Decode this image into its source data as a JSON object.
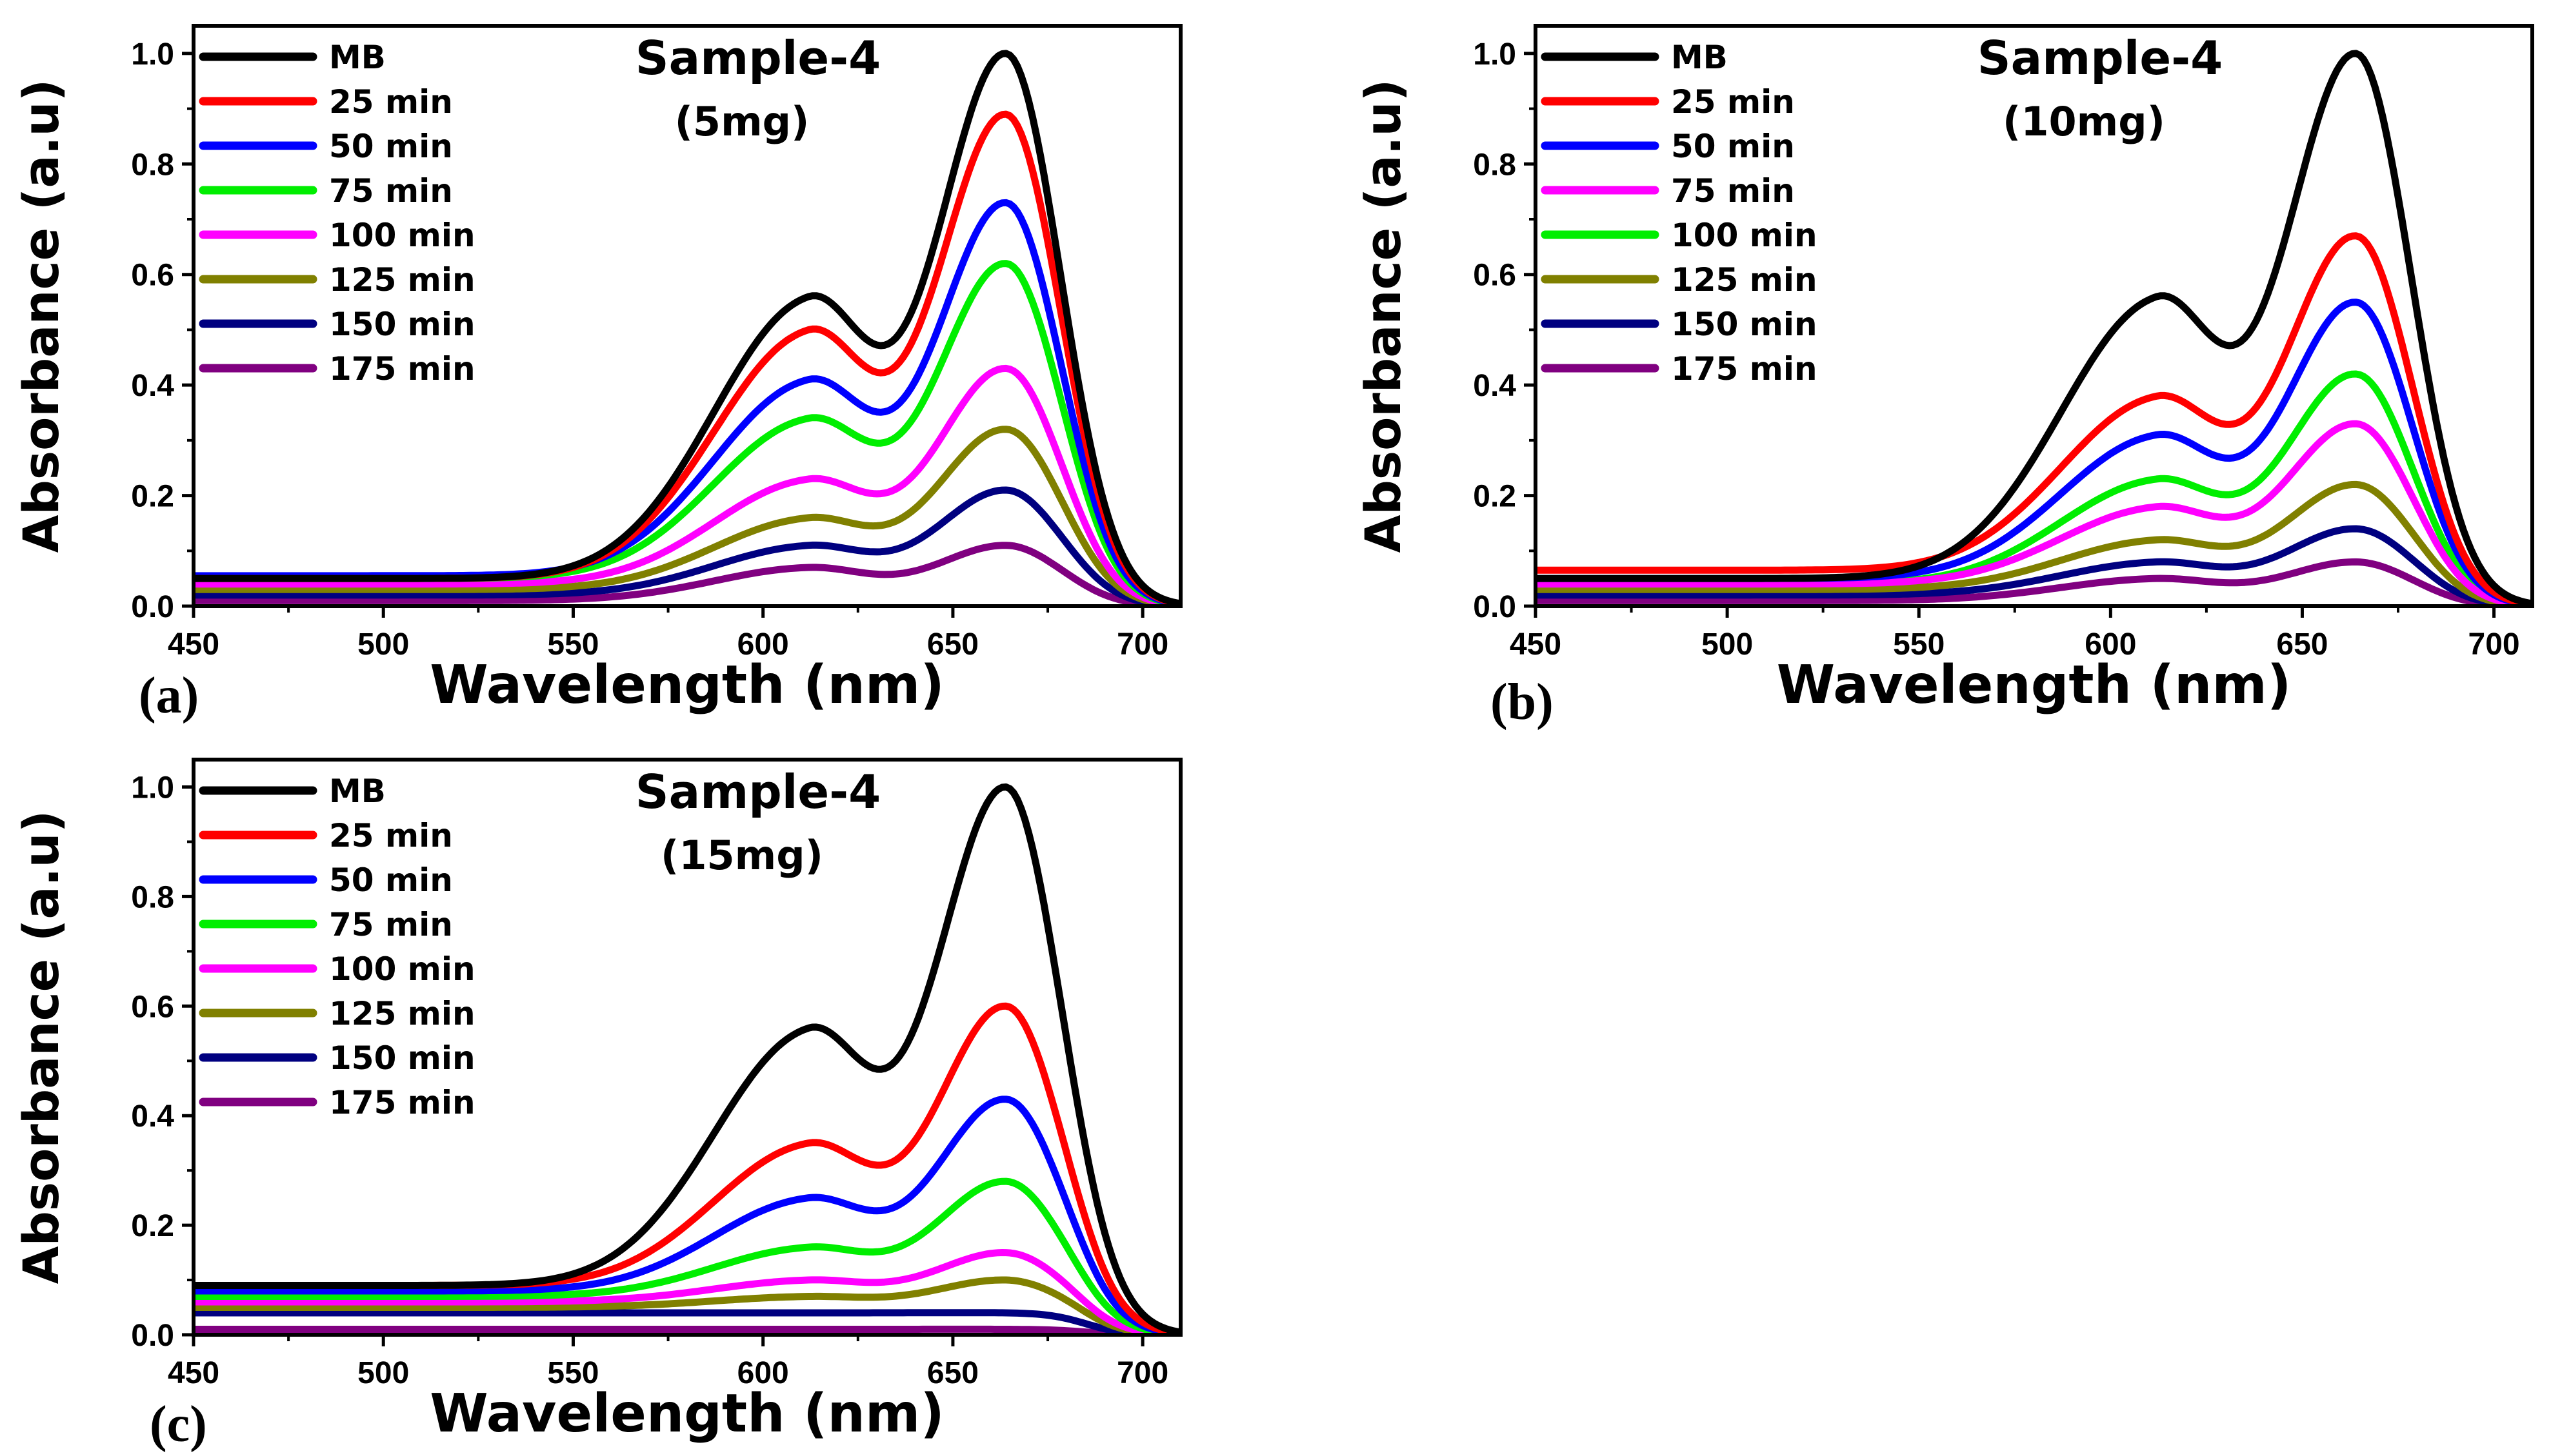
{
  "figure": {
    "panels": [
      {
        "letter": "(a)",
        "title": "Sample-4",
        "subtitle": "(5mg)"
      },
      {
        "letter": "(b)",
        "title": "Sample-4",
        "subtitle": "(10mg)"
      },
      {
        "letter": "(c)",
        "title": "Sample-4",
        "subtitle": "(15mg)"
      }
    ]
  },
  "chart_data": [
    {
      "type": "line",
      "panel": "(a)",
      "title": "Sample-4",
      "subtitle": "(5mg)",
      "xlabel": "Wavelength (nm)",
      "ylabel": "Absorbance (a.u)",
      "xlim": [
        450,
        710
      ],
      "ylim": [
        0.0,
        1.05
      ],
      "xticks": [
        450,
        500,
        550,
        600,
        650,
        700
      ],
      "yticks": [
        0.0,
        0.2,
        0.4,
        0.6,
        0.8,
        1.0
      ],
      "legend_position": "top-left",
      "series": [
        {
          "name": "MB",
          "color": "#000000",
          "base": 0.05,
          "shoulder": 0.56,
          "peak": 1.0
        },
        {
          "name": "25 min",
          "color": "#ff0000",
          "base": 0.05,
          "shoulder": 0.5,
          "peak": 0.89
        },
        {
          "name": "50 min",
          "color": "#0000ff",
          "base": 0.055,
          "shoulder": 0.41,
          "peak": 0.73
        },
        {
          "name": "75 min",
          "color": "#00ee00",
          "base": 0.05,
          "shoulder": 0.34,
          "peak": 0.62
        },
        {
          "name": "100 min",
          "color": "#ff00ff",
          "base": 0.04,
          "shoulder": 0.23,
          "peak": 0.43
        },
        {
          "name": "125 min",
          "color": "#808000",
          "base": 0.03,
          "shoulder": 0.16,
          "peak": 0.32
        },
        {
          "name": "150 min",
          "color": "#000080",
          "base": 0.02,
          "shoulder": 0.11,
          "peak": 0.21
        },
        {
          "name": "175 min",
          "color": "#800080",
          "base": 0.01,
          "shoulder": 0.07,
          "peak": 0.11
        }
      ]
    },
    {
      "type": "line",
      "panel": "(b)",
      "title": "Sample-4",
      "subtitle": "(10mg)",
      "xlabel": "Wavelength (nm)",
      "ylabel": "Absorbance (a.u)",
      "xlim": [
        450,
        710
      ],
      "ylim": [
        0.0,
        1.05
      ],
      "xticks": [
        450,
        500,
        550,
        600,
        650,
        700
      ],
      "yticks": [
        0.0,
        0.2,
        0.4,
        0.6,
        0.8,
        1.0
      ],
      "legend_position": "top-left",
      "series": [
        {
          "name": "MB",
          "color": "#000000",
          "base": 0.05,
          "shoulder": 0.56,
          "peak": 1.0
        },
        {
          "name": "25 min",
          "color": "#ff0000",
          "base": 0.065,
          "shoulder": 0.38,
          "peak": 0.67
        },
        {
          "name": "50 min",
          "color": "#0000ff",
          "base": 0.05,
          "shoulder": 0.31,
          "peak": 0.55
        },
        {
          "name": "75 min",
          "color": "#ff00ff",
          "base": 0.04,
          "shoulder": 0.18,
          "peak": 0.33
        },
        {
          "name": "100 min",
          "color": "#00ee00",
          "base": 0.04,
          "shoulder": 0.23,
          "peak": 0.42
        },
        {
          "name": "125 min",
          "color": "#808000",
          "base": 0.03,
          "shoulder": 0.12,
          "peak": 0.22
        },
        {
          "name": "150 min",
          "color": "#000080",
          "base": 0.02,
          "shoulder": 0.08,
          "peak": 0.14
        },
        {
          "name": "175 min",
          "color": "#800080",
          "base": 0.01,
          "shoulder": 0.05,
          "peak": 0.08
        }
      ]
    },
    {
      "type": "line",
      "panel": "(c)",
      "title": "Sample-4",
      "subtitle": "(15mg)",
      "xlabel": "Wavelength (nm)",
      "ylabel": "Absorbance (a.u)",
      "xlim": [
        450,
        710
      ],
      "ylim": [
        0.0,
        1.05
      ],
      "xticks": [
        450,
        500,
        550,
        600,
        650,
        700
      ],
      "yticks": [
        0.0,
        0.2,
        0.4,
        0.6,
        0.8,
        1.0
      ],
      "legend_position": "top-left",
      "series": [
        {
          "name": "MB",
          "color": "#000000",
          "base": 0.09,
          "shoulder": 0.56,
          "peak": 1.0
        },
        {
          "name": "25 min",
          "color": "#ff0000",
          "base": 0.09,
          "shoulder": 0.35,
          "peak": 0.6
        },
        {
          "name": "50 min",
          "color": "#0000ff",
          "base": 0.08,
          "shoulder": 0.25,
          "peak": 0.43
        },
        {
          "name": "75 min",
          "color": "#00ee00",
          "base": 0.07,
          "shoulder": 0.16,
          "peak": 0.28
        },
        {
          "name": "100 min",
          "color": "#ff00ff",
          "base": 0.06,
          "shoulder": 0.1,
          "peak": 0.15
        },
        {
          "name": "125 min",
          "color": "#808000",
          "base": 0.05,
          "shoulder": 0.07,
          "peak": 0.1
        },
        {
          "name": "150 min",
          "color": "#000080",
          "base": 0.04,
          "shoulder": 0.04,
          "peak": 0.04
        },
        {
          "name": "175 min",
          "color": "#800080",
          "base": 0.01,
          "shoulder": 0.01,
          "peak": 0.01
        }
      ]
    }
  ]
}
